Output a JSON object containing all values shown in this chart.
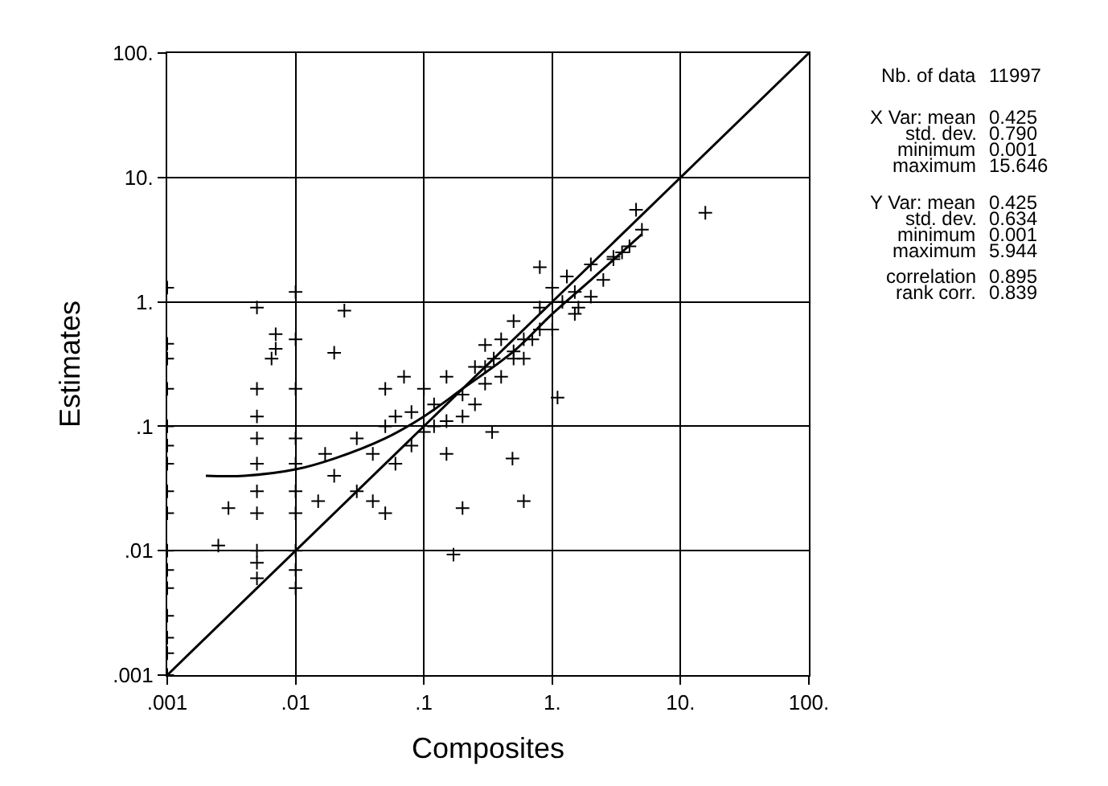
{
  "chart_data": {
    "type": "scatter",
    "xlabel": "Composites",
    "ylabel": "Estimates",
    "log": "xy",
    "grid": true,
    "legend": false,
    "xlim": [
      0.001,
      100
    ],
    "ylim": [
      0.001,
      100
    ],
    "xticks": [
      {
        "value": 0.001,
        "label": ".001"
      },
      {
        "value": 0.01,
        "label": ".01"
      },
      {
        "value": 0.1,
        "label": ".1"
      },
      {
        "value": 1,
        "label": "1."
      },
      {
        "value": 10,
        "label": "10."
      },
      {
        "value": 100,
        "label": "100."
      }
    ],
    "yticks": [
      {
        "value": 0.001,
        "label": ".001"
      },
      {
        "value": 0.01,
        "label": ".01"
      },
      {
        "value": 0.1,
        "label": ".1"
      },
      {
        "value": 1,
        "label": "1."
      },
      {
        "value": 10,
        "label": "10."
      },
      {
        "value": 100,
        "label": "100."
      }
    ],
    "series": [
      {
        "marker": "cross",
        "color": "#000000",
        "x": [
          0.001,
          0.001,
          0.001,
          0.001,
          0.001,
          0.001,
          0.001,
          0.001,
          0.001,
          0.001,
          0.001,
          0.001,
          0.001,
          0.001,
          0.001,
          0.001,
          0.005,
          0.005,
          0.005,
          0.005,
          0.005,
          0.005,
          0.005,
          0.005,
          0.005,
          0.005,
          0.01,
          0.01,
          0.01,
          0.01,
          0.01,
          0.01,
          0.01,
          0.01,
          0.01,
          0.01,
          0.003,
          0.0025,
          0.007,
          0.007,
          0.0065,
          0.024,
          0.02,
          0.017,
          0.03,
          0.04,
          0.05,
          0.06,
          0.015,
          0.02,
          0.03,
          0.04,
          0.05,
          0.06,
          0.08,
          0.1,
          0.12,
          0.15,
          0.08,
          0.1,
          0.12,
          0.15,
          0.2,
          0.25,
          0.3,
          0.35,
          0.15,
          0.2,
          0.25,
          0.3,
          0.4,
          0.5,
          0.6,
          0.8,
          0.3,
          0.4,
          0.5,
          0.6,
          0.8,
          1.0,
          1.2,
          1.5,
          0.5,
          0.7,
          1.0,
          1.3,
          1.6,
          2.0,
          2.5,
          3.0,
          3.5,
          4.0,
          5.0,
          1.5,
          2.0,
          3.0,
          0.17,
          0.2,
          0.49,
          1.1,
          0.8,
          0.34,
          0.05,
          0.07,
          0.6,
          4.5,
          15.6
        ],
        "values": [
          1.3,
          0.46,
          0.35,
          0.2,
          0.1,
          0.07,
          0.05,
          0.03,
          0.02,
          0.01,
          0.007,
          0.005,
          0.003,
          0.002,
          0.0015,
          0.001,
          0.9,
          0.2,
          0.12,
          0.08,
          0.05,
          0.03,
          0.02,
          0.01,
          0.008,
          0.006,
          1.2,
          0.5,
          0.2,
          0.08,
          0.05,
          0.03,
          0.02,
          0.01,
          0.007,
          0.005,
          0.022,
          0.011,
          0.55,
          0.42,
          0.35,
          0.85,
          0.39,
          0.06,
          0.03,
          0.025,
          0.02,
          0.05,
          0.025,
          0.04,
          0.08,
          0.06,
          0.1,
          0.12,
          0.07,
          0.09,
          0.15,
          0.11,
          0.13,
          0.2,
          0.1,
          0.25,
          0.18,
          0.3,
          0.22,
          0.35,
          0.06,
          0.12,
          0.15,
          0.45,
          0.25,
          0.4,
          0.5,
          0.6,
          0.3,
          0.5,
          0.7,
          0.35,
          0.9,
          0.6,
          1.0,
          0.8,
          0.35,
          0.5,
          1.3,
          1.6,
          0.9,
          2.0,
          1.5,
          2.3,
          2.5,
          2.8,
          3.8,
          1.2,
          1.1,
          2.2,
          0.0093,
          0.022,
          0.055,
          0.17,
          1.9,
          0.09,
          0.2,
          0.25,
          0.025,
          5.5,
          5.2
        ]
      },
      {
        "type": "line",
        "color": "#000000",
        "x": [
          0.002,
          0.004,
          0.01,
          0.02,
          0.05,
          0.1,
          0.2,
          0.5,
          1,
          2,
          5
        ],
        "values": [
          0.04,
          0.04,
          0.045,
          0.055,
          0.08,
          0.12,
          0.2,
          0.4,
          0.8,
          1.5,
          3.5
        ]
      },
      {
        "type": "line",
        "color": "#000000",
        "x": [
          0.001,
          100
        ],
        "values": [
          0.001,
          100
        ]
      }
    ],
    "annotations": [
      "Nb. of data",
      "11997",
      "X Var: mean",
      "0.425",
      "std. dev.",
      "0.790",
      "minimum",
      "0.001",
      "maximum",
      "15.646",
      "Y Var: mean",
      "0.425",
      "std. dev.",
      "0.634",
      "minimum",
      "0.001",
      "maximum",
      "5.944",
      "correlation",
      "0.895",
      "rank corr.",
      "0.839"
    ]
  }
}
